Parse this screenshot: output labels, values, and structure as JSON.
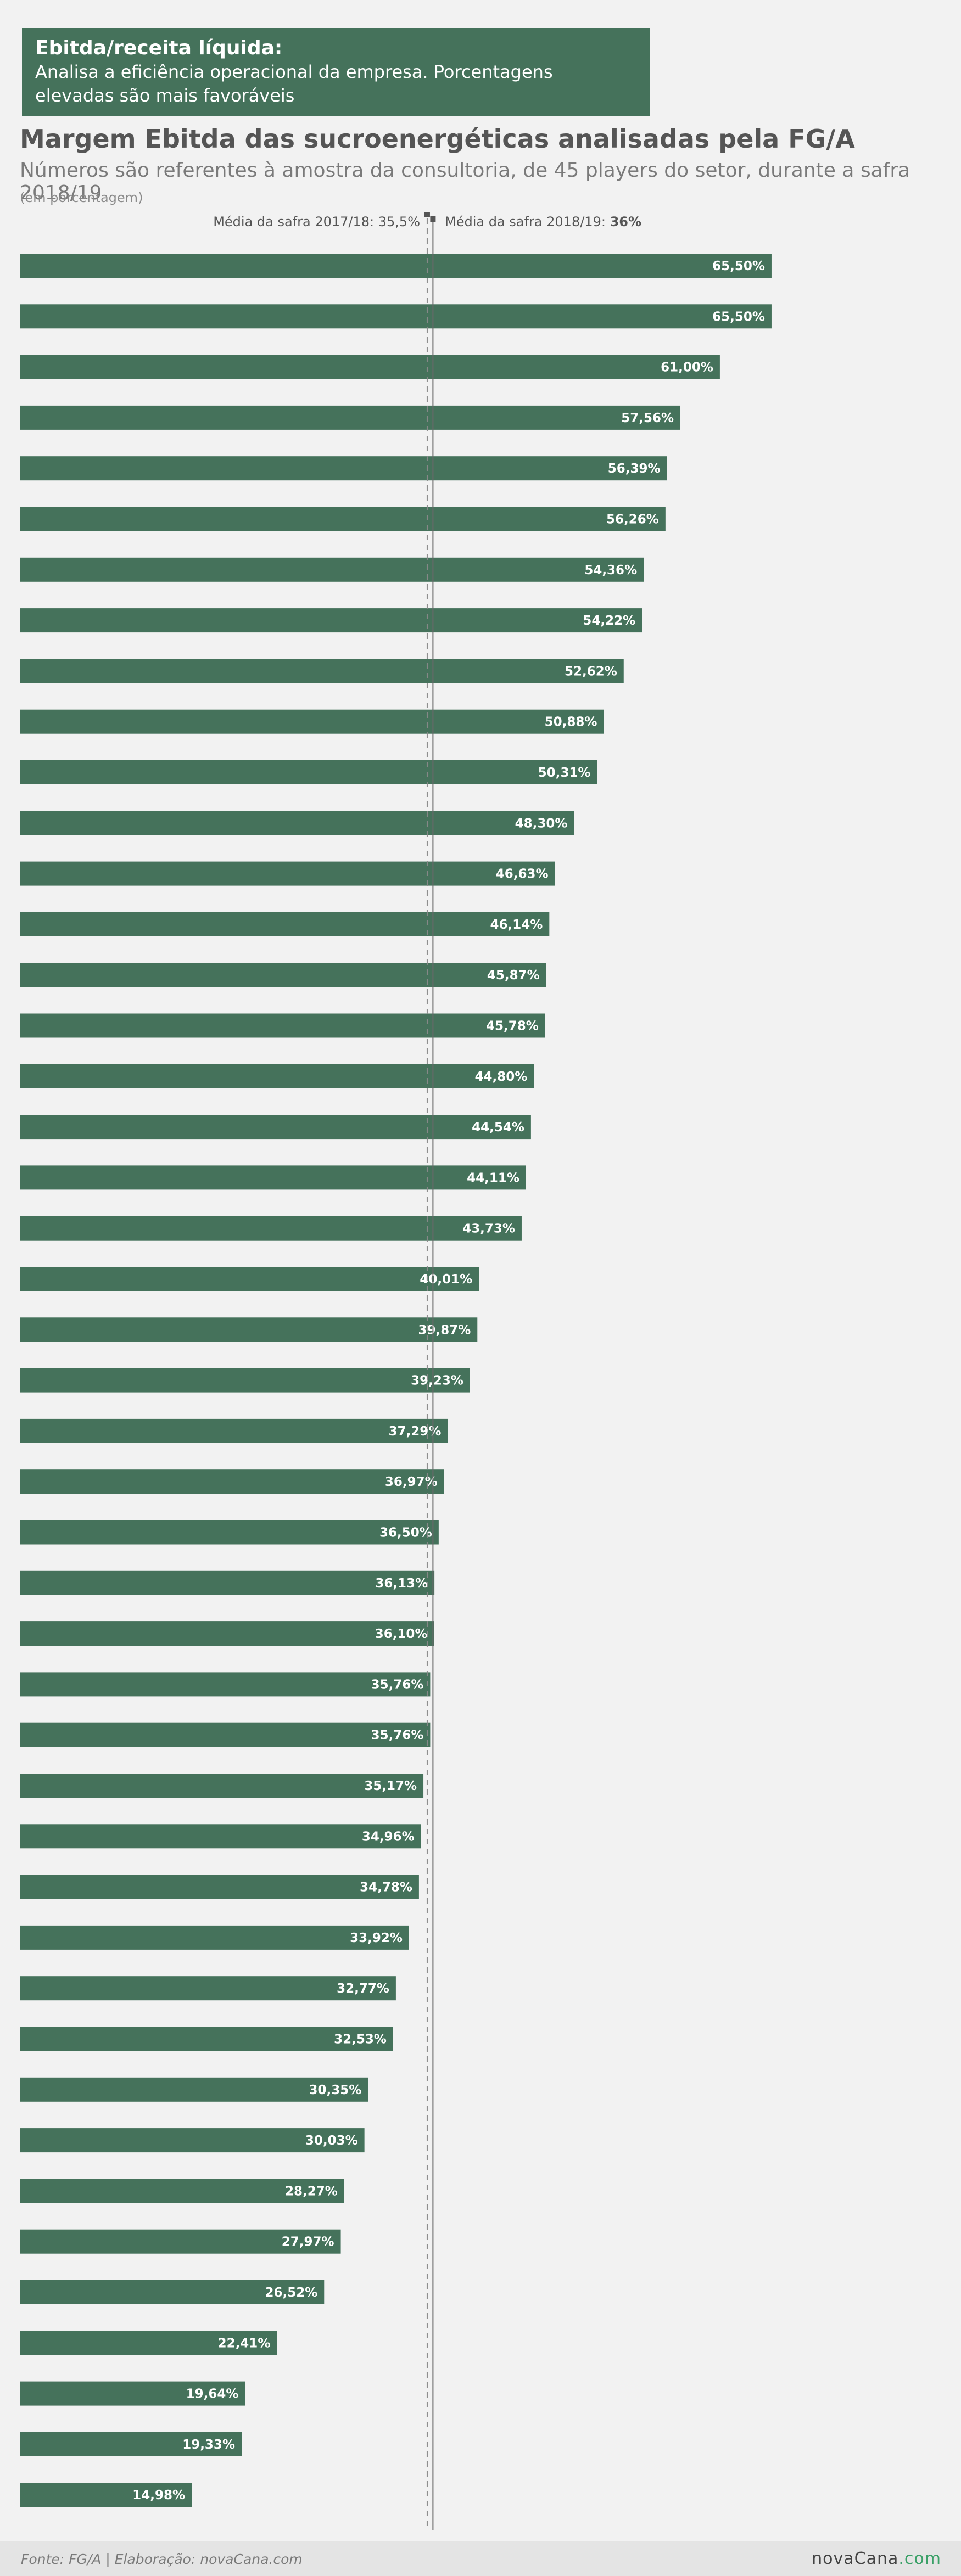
{
  "info_box": {
    "title": "Ebitda/receita líquida:",
    "description_line1": "Analisa a eficiência operacional da empresa. Porcentagens",
    "description_line2": "elevadas são mais favoráveis"
  },
  "colors": {
    "bar": "#45725b",
    "background": "#f2f2f2",
    "text": "#555555"
  },
  "chart_data": {
    "type": "bar",
    "orientation": "horizontal",
    "title": "Margem Ebitda das sucroenergéticas analisadas pela FG/A",
    "subtitle": "Números são referentes à amostra da consultoria, de 45 players do setor, durante a safra 2018/19",
    "unit_note": "(em porcentagem)",
    "xlim": [
      0,
      66
    ],
    "reference_lines": [
      {
        "label": "Média da safra 2017/18: 35,5%",
        "value": 35.5,
        "style": "dashed"
      },
      {
        "label_prefix": "Média da safra 2018/19: ",
        "label_value": "36%",
        "value": 36,
        "style": "solid"
      }
    ],
    "values": [
      65.5,
      65.5,
      61.0,
      57.56,
      56.39,
      56.26,
      54.36,
      54.22,
      52.62,
      50.88,
      50.31,
      48.3,
      46.63,
      46.14,
      45.87,
      45.78,
      44.8,
      44.54,
      44.11,
      43.73,
      40.01,
      39.87,
      39.23,
      37.29,
      36.97,
      36.5,
      36.13,
      36.1,
      35.76,
      35.76,
      35.17,
      34.96,
      34.78,
      33.92,
      32.77,
      32.53,
      30.35,
      30.03,
      28.27,
      27.97,
      26.52,
      22.41,
      19.64,
      19.33,
      14.98
    ],
    "labels": [
      "65,50%",
      "65,50%",
      "61,00%",
      "57,56%",
      "56,39%",
      "56,26%",
      "54,36%",
      "54,22%",
      "52,62%",
      "50,88%",
      "50,31%",
      "48,30%",
      "46,63%",
      "46,14%",
      "45,87%",
      "45,78%",
      "44,80%",
      "44,54%",
      "44,11%",
      "43,73%",
      "40,01%",
      "39,87%",
      "39,23%",
      "37,29%",
      "36,97%",
      "36,50%",
      "36,13%",
      "36,10%",
      "35,76%",
      "35,76%",
      "35,17%",
      "34,96%",
      "34,78%",
      "33,92%",
      "32,77%",
      "32,53%",
      "30,35%",
      "30,03%",
      "28,27%",
      "27,97%",
      "26,52%",
      "22,41%",
      "19,64%",
      "19,33%",
      "14,98%"
    ]
  },
  "footer": {
    "source": "Fonte: FG/A | Elaboração: novaCana.com",
    "logo_part1": "novaCana",
    "logo_part2": ".com"
  }
}
